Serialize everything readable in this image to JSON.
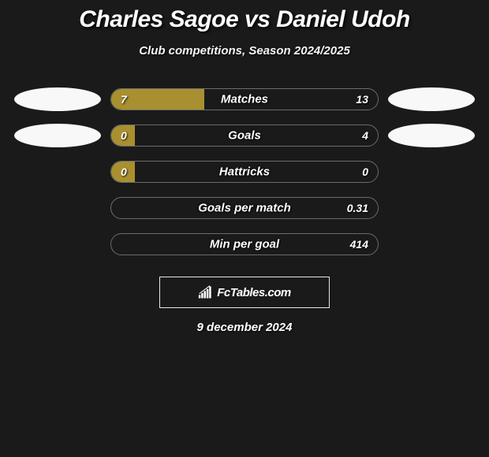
{
  "title": "Charles Sagoe vs Daniel Udoh",
  "subtitle": "Club competitions, Season 2024/2025",
  "date": "9 december 2024",
  "watermark_text": "FcTables.com",
  "colors": {
    "background": "#1a1a1a",
    "bar_fill": "#a89030",
    "bar_border": "#6b6b6b",
    "ellipse_left": "#f8f8f8",
    "ellipse_right": "#f8f8f8",
    "text": "#ffffff"
  },
  "rows": [
    {
      "label": "Matches",
      "left_value": "7",
      "right_value": "13",
      "fill_pct": 35,
      "left_ellipse": true,
      "right_ellipse": true
    },
    {
      "label": "Goals",
      "left_value": "0",
      "right_value": "4",
      "fill_pct": 9,
      "left_ellipse": true,
      "right_ellipse": true
    },
    {
      "label": "Hattricks",
      "left_value": "0",
      "right_value": "0",
      "fill_pct": 9,
      "left_ellipse": false,
      "right_ellipse": false
    },
    {
      "label": "Goals per match",
      "left_value": "",
      "right_value": "0.31",
      "fill_pct": 0,
      "left_ellipse": false,
      "right_ellipse": false
    },
    {
      "label": "Min per goal",
      "left_value": "",
      "right_value": "414",
      "fill_pct": 0,
      "left_ellipse": false,
      "right_ellipse": false
    }
  ]
}
